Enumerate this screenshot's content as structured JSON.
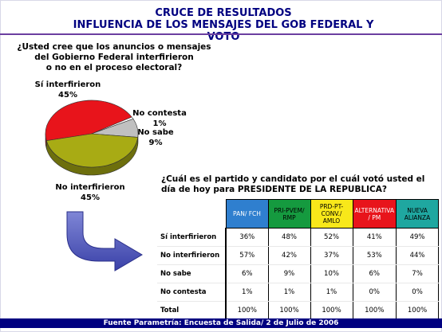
{
  "header": {
    "title_line1": "CRUCE DE RESULTADOS",
    "title_line2": "INFLUENCIA DE LOS MENSAJES DEL GOB FEDERAL  Y VOTO"
  },
  "pie_question": {
    "line1": "¿Usted cree que los anuncios o mensajes",
    "line2": "del Gobierno Federal interfirieron",
    "line3": "o no en el proceso electoral?"
  },
  "table_question": {
    "line1": "¿Cuál es el partido y candidato por el cuál votó usted el",
    "line2": "día de hoy  para PRESIDENTE DE LA REPUBLICA?"
  },
  "footer": "Fuente Parametría: Encuesta de Salida/ 2 de Julio de 2006",
  "chart_data": [
    {
      "type": "pie",
      "slices": [
        {
          "label": "Sí interfirieron",
          "value": 45,
          "value_label": "45%",
          "color": "#e8141b"
        },
        {
          "label": "No contesta",
          "value": 1,
          "value_label": "1%",
          "color": "#ffffff"
        },
        {
          "label": "No sabe",
          "value": 9,
          "value_label": "9%",
          "color": "#c0c0c0"
        },
        {
          "label": "No interfirieron",
          "value": 45,
          "value_label": "45%",
          "color": "#a8ab14"
        }
      ]
    },
    {
      "type": "table",
      "columns": [
        {
          "label": "PAN/ FCH",
          "color": "#2f7fcf",
          "text_color": "#ffffff"
        },
        {
          "label": "PRI-PVEM/ RMP",
          "color": "#159a3f",
          "text_color": "#000000"
        },
        {
          "label": "PRD-PT-CONV./ AMLO",
          "color": "#f8e81a",
          "text_color": "#000000"
        },
        {
          "label": "ALTERNATIVA / PM",
          "color": "#e8141b",
          "text_color": "#ffffff"
        },
        {
          "label": "NUEVA ALIANZA",
          "color": "#1fa7a0",
          "text_color": "#000000"
        }
      ],
      "rows": [
        {
          "label": "Sí interfirieron",
          "values": [
            "36%",
            "48%",
            "52%",
            "41%",
            "49%"
          ]
        },
        {
          "label": "No interfirieron",
          "values": [
            "57%",
            "42%",
            "37%",
            "53%",
            "44%"
          ]
        },
        {
          "label": "No sabe",
          "values": [
            "6%",
            "9%",
            "10%",
            "6%",
            "7%"
          ]
        },
        {
          "label": "No contesta",
          "values": [
            "1%",
            "1%",
            "1%",
            "0%",
            "0%"
          ]
        },
        {
          "label": "Total",
          "values": [
            "100%",
            "100%",
            "100%",
            "100%",
            "100%"
          ]
        }
      ]
    }
  ]
}
